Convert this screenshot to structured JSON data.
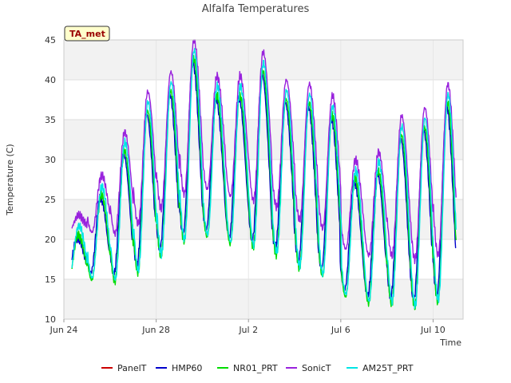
{
  "chart_data": {
    "type": "line",
    "title": "Alfalfa Temperatures",
    "xlabel": "Time",
    "ylabel": "Temperature (C)",
    "badge": "TA_met",
    "x_start": "Jun 24",
    "x_end": "Jul 11.3",
    "xlim_days": [
      0,
      17.3
    ],
    "ylim": [
      10,
      45
    ],
    "yticks": [
      10,
      15,
      20,
      25,
      30,
      35,
      40,
      45
    ],
    "xticks": [
      {
        "day": 0,
        "label": "Jun 24"
      },
      {
        "day": 4,
        "label": "Jun 28"
      },
      {
        "day": 8,
        "label": "Jul 2"
      },
      {
        "day": 12,
        "label": "Jul 6"
      },
      {
        "day": 16,
        "label": "Jul 10"
      }
    ],
    "grid": true,
    "legend_position": "bottom",
    "daily": {
      "day": [
        0,
        1,
        2,
        3,
        4,
        5,
        6,
        7,
        8,
        9,
        10,
        11,
        12,
        13,
        14,
        15,
        16,
        17
      ],
      "min": [
        15.5,
        15.5,
        15.0,
        16.0,
        18.0,
        20.0,
        21.0,
        20.0,
        19.5,
        19.0,
        17.0,
        16.5,
        13.5,
        12.5,
        12.5,
        12.0,
        12.0,
        15.0
      ],
      "max": [
        21.0,
        26.0,
        31.5,
        36.5,
        39.0,
        43.0,
        38.5,
        38.5,
        41.5,
        38.0,
        37.5,
        36.0,
        28.0,
        29.0,
        33.5,
        34.5,
        37.5,
        32.0
      ]
    },
    "series": [
      {
        "name": "PanelT",
        "color": "#cc0000",
        "min_offset": 0.0,
        "max_offset": 0.0,
        "phase": 0.0
      },
      {
        "name": "HMP60",
        "color": "#0000cc",
        "min_offset": 0.4,
        "max_offset": -0.8,
        "phase": 0.04
      },
      {
        "name": "NR01_PRT",
        "color": "#00dd00",
        "min_offset": -0.5,
        "max_offset": -0.4,
        "phase": 0.0
      },
      {
        "name": "SonicT",
        "color": "#9922dd",
        "min_offset": 5.5,
        "max_offset": 2.0,
        "phase": -0.01
      },
      {
        "name": "AM25T_PRT",
        "color": "#00e5e5",
        "min_offset": -0.2,
        "max_offset": 0.7,
        "phase": -0.02
      }
    ]
  }
}
